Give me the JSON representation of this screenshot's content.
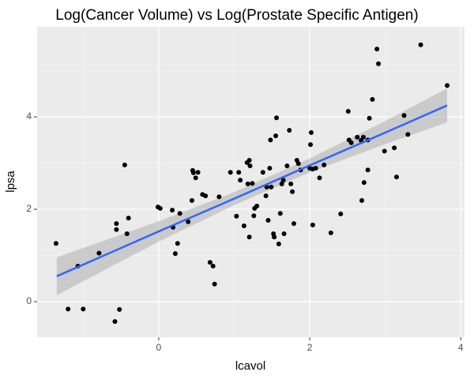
{
  "chart_data": {
    "type": "scatter",
    "title": "Log(Cancer Volume) vs Log(Prostate Specific Antigen)",
    "x_label": "lcavol",
    "y_label": "lpsa",
    "xlim": [
      -1.61,
      4.05
    ],
    "ylim": [
      -0.77,
      5.95
    ],
    "xticks": [
      0,
      2,
      4
    ],
    "yticks": [
      0,
      2,
      4
    ],
    "grid": true,
    "points": {
      "color": "#000000",
      "x": [
        -1.36,
        -1.2,
        -1.07,
        -1.0,
        -0.79,
        -0.58,
        -0.56,
        -0.56,
        -0.52,
        -0.45,
        -0.42,
        -0.4,
        -0.01,
        0.02,
        0.18,
        0.19,
        0.22,
        0.25,
        0.28,
        0.39,
        0.44,
        0.45,
        0.46,
        0.49,
        0.52,
        0.58,
        0.62,
        0.68,
        0.72,
        0.74,
        0.8,
        0.95,
        1.03,
        1.06,
        1.08,
        1.13,
        1.17,
        1.18,
        1.2,
        1.21,
        1.2,
        1.24,
        1.26,
        1.27,
        1.3,
        1.38,
        1.42,
        1.43,
        1.45,
        1.47,
        1.48,
        1.49,
        1.52,
        1.53,
        1.55,
        1.56,
        1.59,
        1.61,
        1.63,
        1.65,
        1.66,
        1.7,
        1.73,
        1.75,
        1.77,
        1.79,
        1.83,
        1.85,
        1.88,
        2.0,
        2.01,
        2.02,
        2.04,
        2.04,
        2.08,
        2.13,
        2.19,
        2.28,
        2.41,
        2.51,
        2.52,
        2.55,
        2.63,
        2.68,
        2.69,
        2.71,
        2.72,
        2.77,
        2.77,
        2.79,
        2.83,
        2.89,
        2.91,
        2.99,
        3.12,
        3.15,
        3.25,
        3.3,
        3.47,
        3.82
      ],
      "y": [
        1.26,
        -0.16,
        0.77,
        -0.16,
        1.05,
        -0.43,
        1.56,
        1.69,
        -0.17,
        2.96,
        1.47,
        1.81,
        2.05,
        2.02,
        1.98,
        1.61,
        1.04,
        1.26,
        1.91,
        1.73,
        2.19,
        2.84,
        2.79,
        2.68,
        2.8,
        2.32,
        2.29,
        0.85,
        0.77,
        0.38,
        2.27,
        2.8,
        1.85,
        2.8,
        2.63,
        1.64,
        3.01,
        2.55,
        3.06,
        2.94,
        1.4,
        2.56,
        1.86,
        2.02,
        2.07,
        2.8,
        2.29,
        2.48,
        1.76,
        2.89,
        3.5,
        2.48,
        1.47,
        1.4,
        3.59,
        3.98,
        1.25,
        1.91,
        2.55,
        2.63,
        1.47,
        2.94,
        3.71,
        2.55,
        2.38,
        1.69,
        3.06,
        2.99,
        2.85,
        2.89,
        3.4,
        3.66,
        1.66,
        2.87,
        2.89,
        2.68,
        2.96,
        1.49,
        1.9,
        4.12,
        3.5,
        3.44,
        3.56,
        3.49,
        2.19,
        3.56,
        2.58,
        3.5,
        2.85,
        3.97,
        4.38,
        5.47,
        5.15,
        3.26,
        3.33,
        2.7,
        4.03,
        3.62,
        5.56,
        4.68
      ]
    },
    "smooth": {
      "color": "#3366FF",
      "band_color": "#999999",
      "x": [
        -1.35,
        0,
        1,
        2,
        3,
        3.82
      ],
      "y": [
        0.55,
        1.52,
        2.23,
        2.95,
        3.66,
        4.25
      ],
      "lower": [
        0.14,
        1.3,
        2.09,
        2.8,
        3.41,
        3.88
      ],
      "upper": [
        0.96,
        1.74,
        2.37,
        3.1,
        3.91,
        4.62
      ]
    }
  }
}
